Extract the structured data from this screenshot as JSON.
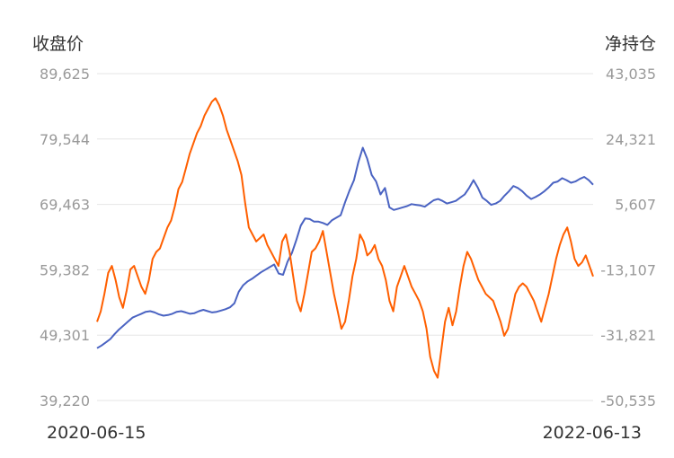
{
  "chart_data": {
    "type": "line",
    "left_axis_title": "收盘价",
    "right_axis_title": "净持仓",
    "left_ticks": [
      "89,625",
      "79,544",
      "69,463",
      "59,382",
      "49,301",
      "39,220"
    ],
    "right_ticks": [
      "43,035",
      "24,321",
      "5,607",
      "-13,107",
      "-31,821",
      "-50,535"
    ],
    "ylim_left": [
      39220,
      89625
    ],
    "ylim_right": [
      -50535,
      43035
    ],
    "x_start_label": "2020-06-15",
    "x_end_label": "2022-06-13",
    "grid": true,
    "colors": {
      "close": "#4a63c2",
      "net": "#ff5f00"
    },
    "series": [
      {
        "axis": "left",
        "color": "#4a63c2",
        "values": [
          47300,
          47700,
          48200,
          48700,
          49500,
          50200,
          50800,
          51400,
          52000,
          52300,
          52600,
          52900,
          53000,
          52800,
          52500,
          52300,
          52400,
          52600,
          52900,
          53000,
          52800,
          52600,
          52700,
          53000,
          53200,
          53000,
          52800,
          52900,
          53100,
          53300,
          53600,
          54200,
          56000,
          57000,
          57600,
          58000,
          58500,
          59000,
          59400,
          59800,
          60200,
          58800,
          58600,
          60600,
          62000,
          64000,
          66200,
          67300,
          67200,
          66800,
          66800,
          66600,
          66300,
          67000,
          67400,
          67800,
          69800,
          71600,
          73200,
          76000,
          78200,
          76500,
          74000,
          73000,
          71000,
          72000,
          69000,
          68600,
          68800,
          69000,
          69200,
          69500,
          69400,
          69300,
          69100,
          69600,
          70100,
          70300,
          70000,
          69600,
          69800,
          70000,
          70500,
          71000,
          72000,
          73200,
          72000,
          70500,
          70000,
          69400,
          69600,
          70000,
          70800,
          71500,
          72300,
          72000,
          71500,
          70800,
          70300,
          70600,
          71000,
          71500,
          72100,
          72800,
          73000,
          73500,
          73200,
          72800,
          73000,
          73400,
          73700,
          73200,
          72500
        ]
      },
      {
        "axis": "right",
        "color": "#ff5f00",
        "values": [
          -28000,
          -25000,
          -20000,
          -14000,
          -12000,
          -16000,
          -21000,
          -24000,
          -19000,
          -13000,
          -12000,
          -15000,
          -18000,
          -20000,
          -16000,
          -10000,
          -8000,
          -7000,
          -4000,
          -1000,
          1000,
          5000,
          10000,
          12000,
          16000,
          20000,
          23000,
          26000,
          28000,
          31000,
          33000,
          35000,
          36000,
          34000,
          31000,
          27000,
          24000,
          21000,
          18000,
          14000,
          6000,
          -1000,
          -3000,
          -5000,
          -4000,
          -3000,
          -6000,
          -8000,
          -10000,
          -12000,
          -5000,
          -3000,
          -8000,
          -15000,
          -22000,
          -25000,
          -20000,
          -14000,
          -8000,
          -7000,
          -5000,
          -2000,
          -8000,
          -14000,
          -20000,
          -25000,
          -30000,
          -28000,
          -22000,
          -15000,
          -10000,
          -3000,
          -5000,
          -9000,
          -8000,
          -6000,
          -10000,
          -12000,
          -16000,
          -22000,
          -25000,
          -18000,
          -15000,
          -12000,
          -15000,
          -18000,
          -20000,
          -22000,
          -25000,
          -30000,
          -38000,
          -42000,
          -44000,
          -36000,
          -28000,
          -24000,
          -29000,
          -25000,
          -18000,
          -12000,
          -8000,
          -10000,
          -13000,
          -16000,
          -18000,
          -20000,
          -21000,
          -22000,
          -25000,
          -28000,
          -32000,
          -30000,
          -25000,
          -20000,
          -18000,
          -17000,
          -18000,
          -20000,
          -22000,
          -25000,
          -28000,
          -24000,
          -20000,
          -15000,
          -10000,
          -6000,
          -3000,
          -1000,
          -5000,
          -10000,
          -12000,
          -11000,
          -9000,
          -12000,
          -15000
        ]
      }
    ]
  }
}
